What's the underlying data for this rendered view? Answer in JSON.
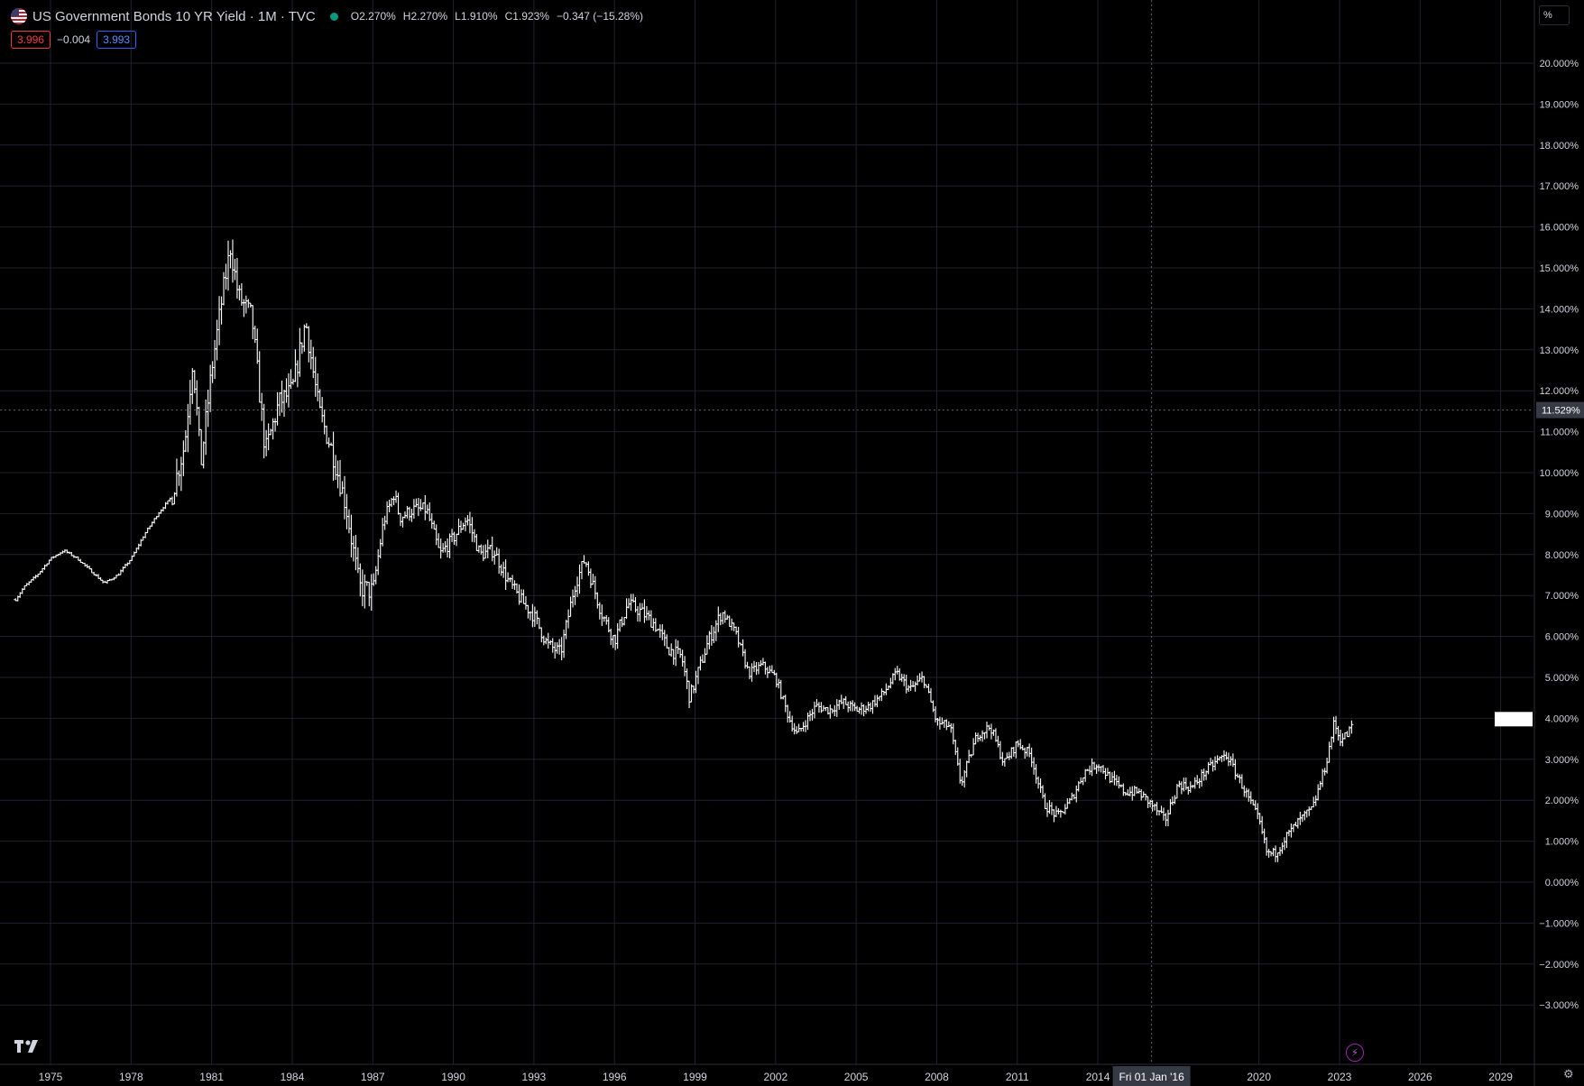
{
  "header": {
    "symbol_title": "US Government Bonds 10 YR Yield · 1M · TVC",
    "ohlc": {
      "open_label": "O",
      "open": "2.270%",
      "high_label": "H",
      "high": "2.270%",
      "low_label": "L",
      "low": "1.910%",
      "close_label": "C",
      "close": "1.923%",
      "change": "−0.347 (−15.28%)"
    },
    "bid": "3.996",
    "spread": "−0.004",
    "ask": "3.993",
    "unit_button": "%"
  },
  "crosshair": {
    "date_label": "Fri 01 Jan '16",
    "price_label": "11.529%",
    "date_value": 2016.0,
    "price_value": 11.529
  },
  "last_price_marker_value": 3.98,
  "colors": {
    "background": "#000000",
    "grid": "#1f2230",
    "bars": "#ffffff",
    "axis_text": "#d1d4dc",
    "bid": "#f23645",
    "ask": "#2962ff",
    "status_dot": "#089981"
  },
  "icons": {
    "flag": "us-flag-icon",
    "logo": "tradingview-logo-icon",
    "flash": "lightning-icon",
    "settings": "gear-icon"
  },
  "chart_data": {
    "type": "line",
    "style": "ohlc-bars",
    "ylim": [
      -3.3,
      21.0
    ],
    "xlim": [
      1973.5,
      2030.2
    ],
    "y_ticks": [
      "20.000%",
      "19.000%",
      "18.000%",
      "17.000%",
      "16.000%",
      "15.000%",
      "14.000%",
      "13.000%",
      "12.000%",
      "11.000%",
      "10.000%",
      "9.000%",
      "8.000%",
      "7.000%",
      "6.000%",
      "5.000%",
      "4.000%",
      "3.000%",
      "2.000%",
      "1.000%",
      "0.000%",
      "−1.000%",
      "−2.000%",
      "−3.000%"
    ],
    "y_tick_values": [
      20,
      19,
      18,
      17,
      16,
      15,
      14,
      13,
      12,
      11,
      10,
      9,
      8,
      7,
      6,
      5,
      4,
      3,
      2,
      1,
      0,
      -1,
      -2,
      -3
    ],
    "x_ticks": [
      "1975",
      "1978",
      "1981",
      "1984",
      "1987",
      "1990",
      "1993",
      "1996",
      "1999",
      "2002",
      "2005",
      "2008",
      "2011",
      "2014",
      "2020",
      "2023",
      "2026",
      "2029"
    ],
    "x_tick_values": [
      1975,
      1978,
      1981,
      1984,
      1987,
      1990,
      1993,
      1996,
      1999,
      2002,
      2005,
      2008,
      2011,
      2014,
      2020,
      2023,
      2026,
      2029
    ],
    "grid": true,
    "series": [
      {
        "x": [
          1973.7,
          1974.0,
          1974.5,
          1975.0,
          1975.5,
          1976.0,
          1976.5,
          1977.0,
          1977.5,
          1978.0,
          1978.5,
          1979.0,
          1979.5,
          1980.0,
          1980.3,
          1980.6,
          1981.0,
          1981.4,
          1981.7,
          1982.0,
          1982.5,
          1983.0,
          1983.5,
          1984.0,
          1984.5,
          1985.0,
          1985.5,
          1986.0,
          1986.5,
          1987.0,
          1987.4,
          1987.8,
          1988.0,
          1988.5,
          1989.0,
          1989.5,
          1990.0,
          1990.5,
          1991.0,
          1991.5,
          1992.0,
          1992.5,
          1993.0,
          1993.5,
          1994.0,
          1994.5,
          1994.9,
          1995.5,
          1996.0,
          1996.5,
          1997.0,
          1997.5,
          1998.0,
          1998.5,
          1998.8,
          1999.5,
          2000.0,
          2000.5,
          2001.0,
          2001.5,
          2002.0,
          2002.5,
          2002.8,
          2003.5,
          2004.0,
          2004.5,
          2005.0,
          2005.5,
          2006.0,
          2006.5,
          2007.0,
          2007.5,
          2008.0,
          2008.5,
          2008.9,
          2009.5,
          2010.0,
          2010.5,
          2011.0,
          2011.5,
          2012.0,
          2012.5,
          2013.0,
          2013.5,
          2014.0,
          2014.5,
          2015.0,
          2015.5,
          2016.0,
          2016.5,
          2017.0,
          2017.5,
          2018.0,
          2018.5,
          2018.8,
          2019.5,
          2020.0,
          2020.3,
          2020.6,
          2021.0,
          2021.5,
          2022.0,
          2022.5,
          2022.8,
          2023.0,
          2023.3,
          2023.5
        ],
        "values": [
          6.9,
          7.2,
          7.5,
          7.9,
          8.1,
          7.9,
          7.6,
          7.3,
          7.5,
          7.9,
          8.5,
          9.0,
          9.4,
          10.7,
          12.8,
          10.2,
          12.5,
          14.3,
          15.5,
          14.3,
          13.8,
          10.5,
          11.7,
          12.0,
          13.7,
          11.5,
          10.5,
          9.2,
          7.2,
          7.1,
          8.8,
          9.5,
          8.9,
          9.1,
          9.1,
          8.0,
          8.4,
          8.9,
          8.0,
          8.1,
          7.4,
          6.9,
          6.5,
          5.8,
          5.6,
          7.2,
          7.9,
          6.6,
          5.9,
          6.8,
          6.6,
          6.3,
          5.7,
          5.5,
          4.5,
          5.9,
          6.6,
          6.1,
          5.1,
          5.3,
          5.0,
          4.0,
          3.6,
          4.3,
          4.2,
          4.4,
          4.2,
          4.3,
          4.6,
          5.1,
          4.7,
          5.0,
          3.9,
          3.8,
          2.4,
          3.6,
          3.8,
          2.9,
          3.4,
          3.1,
          1.9,
          1.6,
          2.0,
          2.7,
          2.9,
          2.5,
          2.2,
          2.2,
          1.9,
          1.5,
          2.4,
          2.3,
          2.7,
          3.0,
          3.1,
          2.2,
          1.5,
          0.7,
          0.7,
          1.1,
          1.5,
          1.8,
          2.9,
          3.9,
          3.5,
          3.6,
          3.9
        ]
      }
    ]
  }
}
